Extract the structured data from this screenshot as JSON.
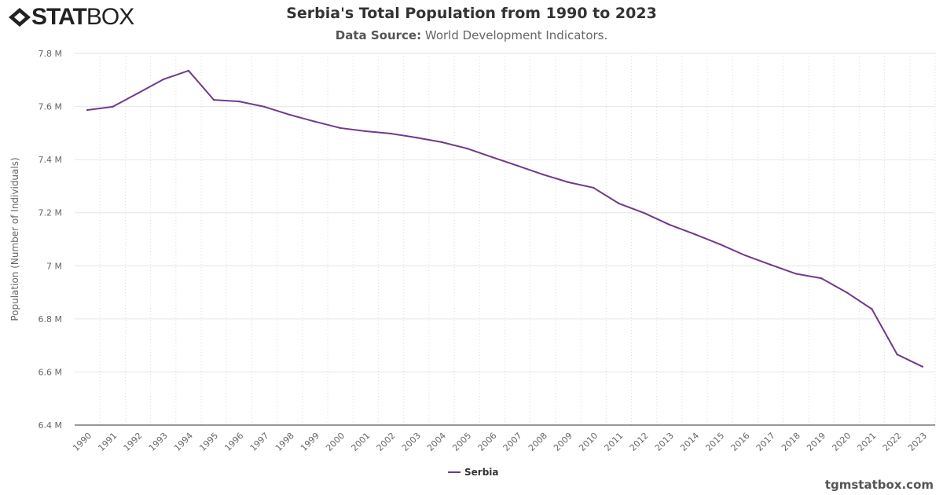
{
  "brand": {
    "logo_bold": "STAT",
    "logo_light": "BOX"
  },
  "header": {
    "title": "Serbia's Total Population from 1990 to 2023",
    "source_label": "Data Source:",
    "source_value": "World Development Indicators."
  },
  "footer": "tgmstatbox.com",
  "colors": {
    "series": "#6f3a8c"
  },
  "chart_data": {
    "type": "line",
    "title": "Serbia's Total Population from 1990 to 2023",
    "subtitle": "Data Source: World Development Indicators.",
    "xlabel": "",
    "ylabel": "Population (Number of Individuals)",
    "ylim": [
      6.4,
      7.8
    ],
    "yticks": [
      "6.4 M",
      "6.6 M",
      "6.8 M",
      "7 M",
      "7.2 M",
      "7.4 M",
      "7.6 M",
      "7.8 M"
    ],
    "grid": true,
    "legend": "bottom",
    "categories": [
      "1990",
      "1991",
      "1992",
      "1993",
      "1994",
      "1995",
      "1996",
      "1997",
      "1998",
      "1999",
      "2000",
      "2001",
      "2002",
      "2003",
      "2004",
      "2005",
      "2006",
      "2007",
      "2008",
      "2009",
      "2010",
      "2011",
      "2012",
      "2013",
      "2014",
      "2015",
      "2016",
      "2017",
      "2018",
      "2019",
      "2020",
      "2021",
      "2022",
      "2023"
    ],
    "series": [
      {
        "name": "Serbia",
        "values": [
          7.587,
          7.599,
          7.65,
          7.702,
          7.735,
          7.625,
          7.619,
          7.599,
          7.569,
          7.543,
          7.519,
          7.507,
          7.498,
          7.483,
          7.466,
          7.442,
          7.409,
          7.377,
          7.344,
          7.315,
          7.294,
          7.235,
          7.199,
          7.155,
          7.119,
          7.081,
          7.039,
          7.004,
          6.97,
          6.953,
          6.9,
          6.837,
          6.666,
          6.62
        ]
      }
    ]
  }
}
